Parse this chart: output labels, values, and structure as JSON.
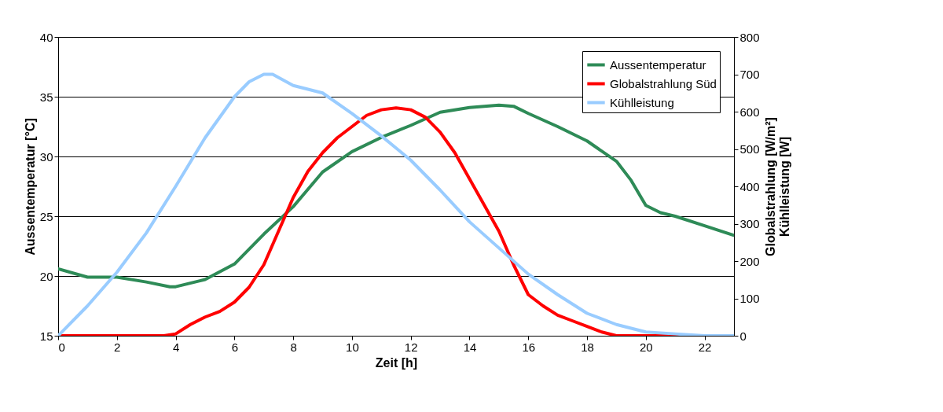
{
  "chart_data": {
    "type": "line",
    "xlabel": "Zeit [h]",
    "ylabel": "Aussentemperatur [°C]",
    "y2label": "Globalstrahlung [W/m²]\nKühlleistung [W]",
    "xlim": [
      0,
      23
    ],
    "xticks": [
      0,
      2,
      4,
      6,
      8,
      10,
      12,
      14,
      16,
      18,
      20,
      22
    ],
    "ylim": [
      15,
      40
    ],
    "yticks": [
      15,
      20,
      25,
      30,
      35,
      40
    ],
    "y2lim": [
      0,
      800
    ],
    "y2ticks": [
      0,
      100,
      200,
      300,
      400,
      500,
      600,
      700,
      800
    ],
    "grid": "y",
    "legend": "top right",
    "marker": "none",
    "line_style": "solid",
    "series": [
      {
        "name": "Aussentemperatur",
        "color": "#2e8b57",
        "x": [
          0,
          1,
          2,
          3,
          3.8,
          4,
          5,
          6,
          7,
          8,
          9,
          10,
          11,
          12,
          13,
          14,
          15,
          15.5,
          16,
          17,
          18,
          19,
          19.5,
          20,
          20.5,
          21,
          22,
          23
        ],
        "values": [
          20.6,
          19.9,
          19.9,
          19.5,
          19.1,
          19.1,
          19.7,
          21,
          23.5,
          25.8,
          28.7,
          30.4,
          31.6,
          32.6,
          33.7,
          34.1,
          34.3,
          34.2,
          33.6,
          32.5,
          31.3,
          29.6,
          28,
          25.9,
          25.3,
          25,
          24.2,
          23.4
        ]
      },
      {
        "name": "Globalstrahlung Süd",
        "color": "#ff0000",
        "axis": "y2",
        "x": [
          0,
          1,
          2,
          3,
          3.6,
          4,
          4.5,
          5,
          5.5,
          6,
          6.5,
          7,
          7.5,
          8,
          8.5,
          9,
          9.5,
          10,
          10.5,
          11,
          11.5,
          12,
          12.5,
          13,
          13.5,
          14,
          14.5,
          15,
          15.5,
          16,
          16.5,
          17,
          17.5,
          18,
          18.5,
          19,
          20,
          21,
          22,
          23
        ],
        "values": [
          0,
          0,
          0,
          0,
          0,
          5,
          30,
          50,
          65,
          90,
          130,
          190,
          280,
          370,
          440,
          490,
          530,
          560,
          590,
          605,
          610,
          605,
          585,
          545,
          490,
          420,
          350,
          280,
          190,
          110,
          80,
          55,
          40,
          25,
          10,
          0,
          0,
          0,
          0,
          0
        ]
      },
      {
        "name": "Kühlleistung",
        "color": "#99ccff",
        "axis": "y2",
        "x": [
          0,
          1,
          2,
          3,
          4,
          5,
          6,
          6.5,
          7,
          7.3,
          8,
          9,
          10,
          11,
          12,
          13,
          14,
          15,
          16,
          17,
          18,
          19,
          20,
          21,
          22,
          23
        ],
        "values": [
          0,
          80,
          170,
          275,
          400,
          530,
          640,
          680,
          700,
          700,
          670,
          650,
          595,
          535,
          470,
          390,
          305,
          235,
          165,
          110,
          60,
          30,
          10,
          5,
          0,
          0
        ]
      }
    ]
  }
}
